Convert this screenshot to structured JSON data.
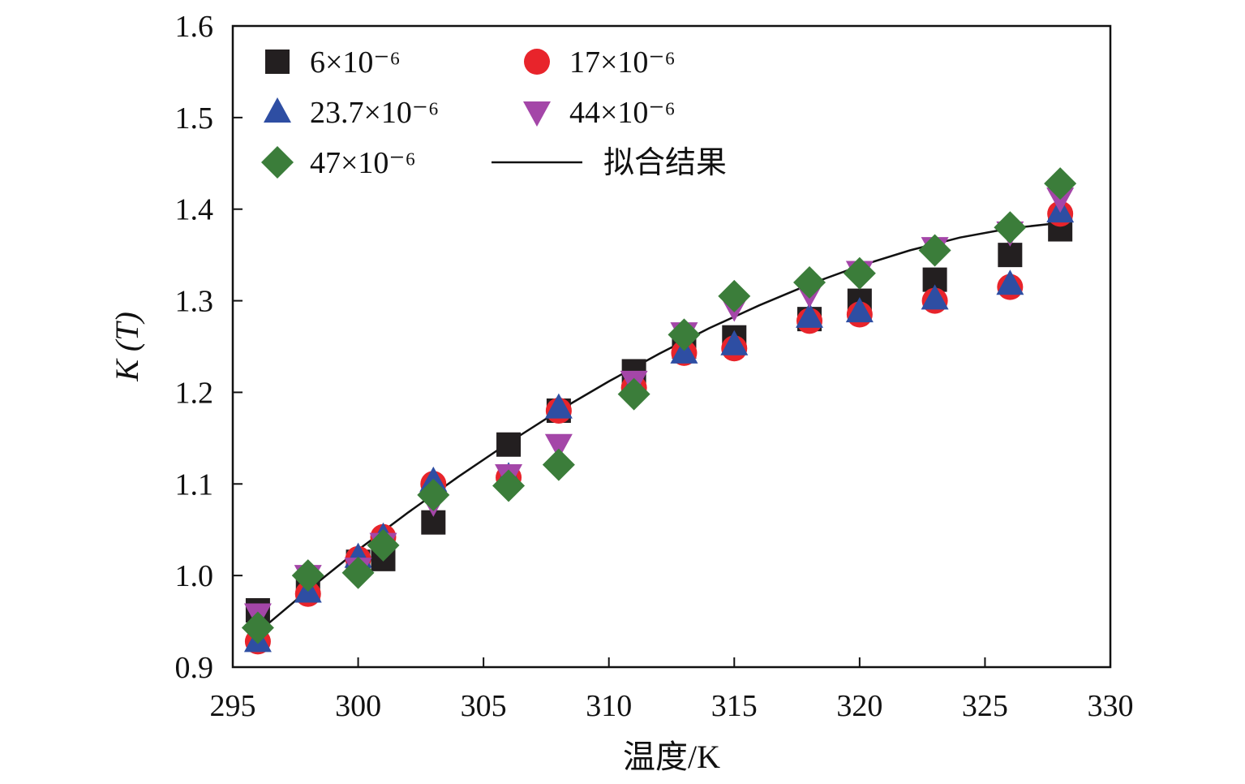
{
  "chart_data": {
    "type": "scatter",
    "title": "",
    "xlabel": "温度/K",
    "ylabel": "K (T)",
    "xlim": [
      295,
      330
    ],
    "ylim": [
      0.9,
      1.6
    ],
    "xticks": [
      "295",
      "300",
      "305",
      "310",
      "315",
      "320",
      "325",
      "330"
    ],
    "yticks": [
      "0.9",
      "1.0",
      "1.1",
      "1.2",
      "1.3",
      "1.4",
      "1.5",
      "1.6"
    ],
    "grid": false,
    "legend_position": "top-left",
    "x": [
      296,
      298,
      300,
      301,
      303,
      306,
      308,
      311,
      313,
      315,
      318,
      320,
      323,
      326,
      328
    ],
    "series": [
      {
        "name": "6×10⁻⁶",
        "marker": "square",
        "color": "#231f20",
        "values": [
          0.962,
          0.985,
          1.015,
          1.018,
          1.058,
          1.143,
          1.18,
          1.223,
          1.25,
          1.26,
          1.28,
          1.3,
          1.323,
          1.35,
          1.378
        ]
      },
      {
        "name": "17×10⁻⁶",
        "marker": "circle",
        "color": "#e8242b",
        "values": [
          0.928,
          0.98,
          1.018,
          1.042,
          1.1,
          1.107,
          1.18,
          1.205,
          1.243,
          1.248,
          1.278,
          1.285,
          1.3,
          1.315,
          1.395
        ]
      },
      {
        "name": "23.7×10⁻⁶",
        "marker": "triangle-up",
        "color": "#2e4ea3",
        "values": [
          0.928,
          0.982,
          1.02,
          1.042,
          1.103,
          1.108,
          1.183,
          1.207,
          1.243,
          1.252,
          1.282,
          1.288,
          1.302,
          1.318,
          1.397
        ]
      },
      {
        "name": "44×10⁻⁶",
        "marker": "triangle-down",
        "color": "#a446a8",
        "values": [
          0.958,
          1.0,
          1.008,
          1.035,
          1.08,
          1.11,
          1.143,
          1.212,
          1.265,
          1.293,
          1.308,
          1.332,
          1.358,
          1.375,
          1.412
        ]
      },
      {
        "name": "47×10⁻⁶",
        "marker": "diamond",
        "color": "#3b7d3a",
        "values": [
          0.943,
          1.0,
          1.003,
          1.033,
          1.088,
          1.098,
          1.121,
          1.198,
          1.263,
          1.305,
          1.32,
          1.33,
          1.355,
          1.38,
          1.428
        ]
      },
      {
        "name": "拟合结果",
        "marker": "line",
        "color": "#111111",
        "x": [
          296,
          298,
          300,
          302,
          304,
          306,
          308,
          310,
          312,
          314,
          316,
          318,
          320,
          322,
          324,
          326,
          328
        ],
        "values": [
          0.938,
          0.984,
          1.028,
          1.069,
          1.108,
          1.145,
          1.18,
          1.212,
          1.242,
          1.27,
          1.295,
          1.318,
          1.338,
          1.355,
          1.369,
          1.379,
          1.385
        ]
      }
    ]
  }
}
